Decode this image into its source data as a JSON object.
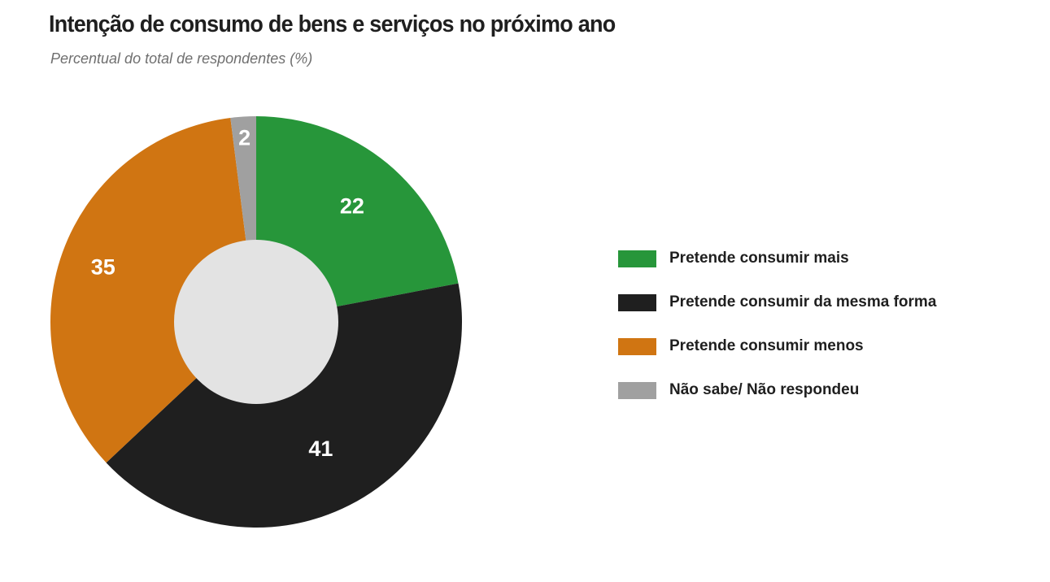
{
  "chart_data": {
    "type": "pie",
    "style": "donut",
    "title": "Intenção de consumo de bens e serviços no próximo ano",
    "subtitle": "Percentual do total de respondentes (%)",
    "categories": [
      "Pretende consumir mais",
      "Pretende consumir da mesma forma",
      "Pretende consumir menos",
      "Não sabe/ Não respondeu"
    ],
    "values": [
      22,
      41,
      35,
      2
    ],
    "data_labels": [
      "22",
      "41",
      "35",
      "2"
    ],
    "colors": [
      "#27963a",
      "#1f1f1f",
      "#d07512",
      "#a0a0a0"
    ],
    "hole_color": "#e3e3e3",
    "legend_placement": "right"
  }
}
